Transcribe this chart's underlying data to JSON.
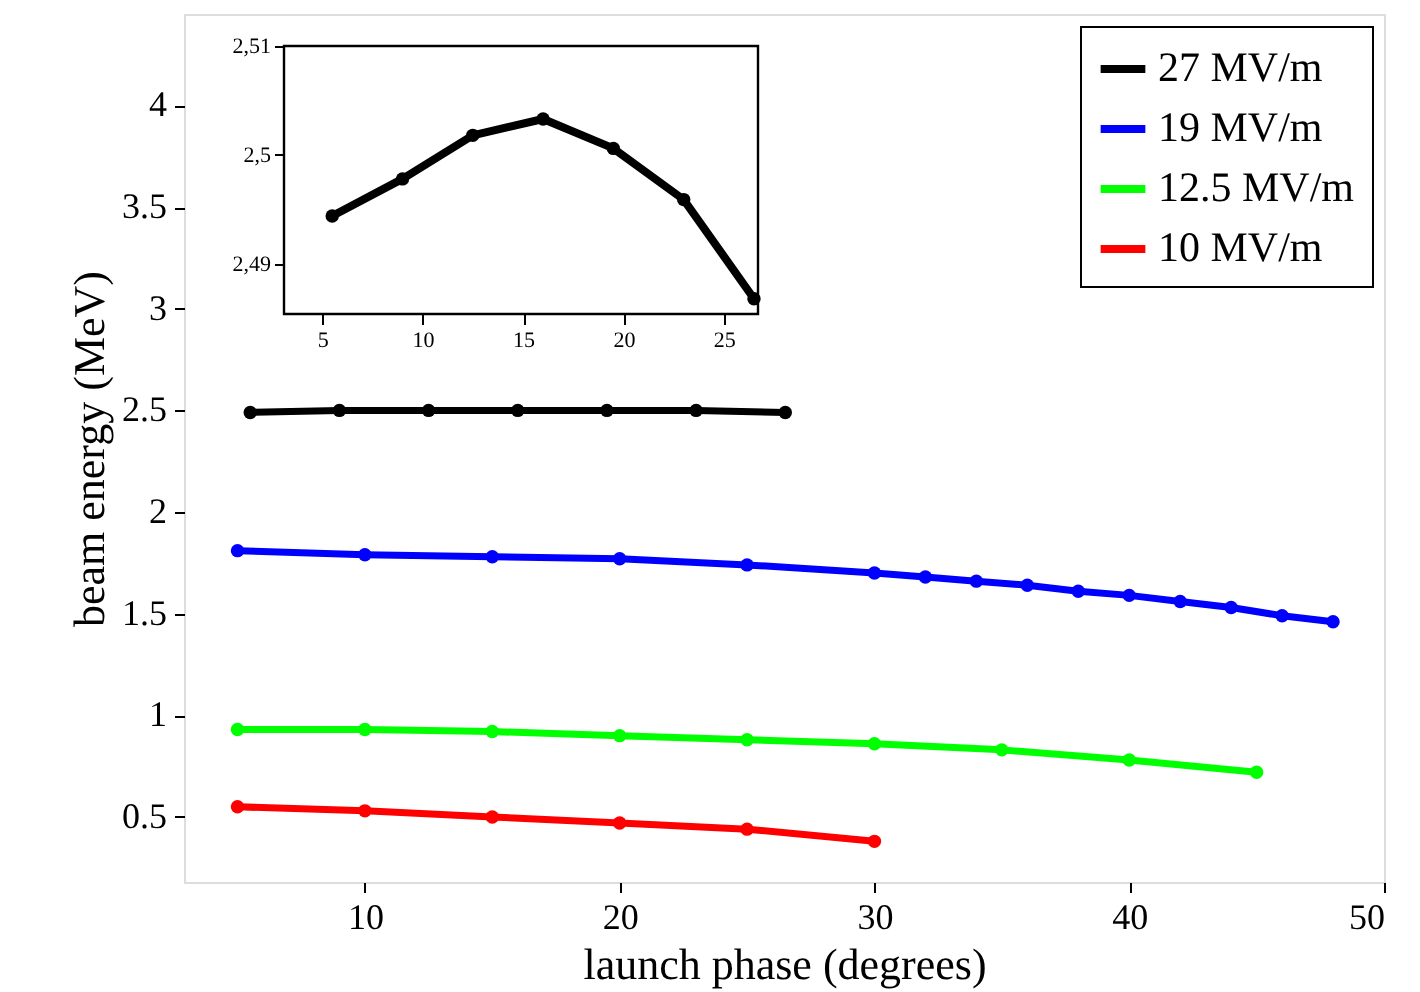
{
  "chart_data": [
    {
      "type": "line",
      "xlabel": "launch phase (degrees)",
      "ylabel": "beam energy (MeV)",
      "xlim": [
        2.9,
        50
      ],
      "ylim": [
        0.18,
        4.45
      ],
      "xticks": [
        10,
        20,
        30,
        40,
        50
      ],
      "yticks": [
        0.5,
        1,
        1.5,
        2,
        2.5,
        3,
        3.5,
        4
      ],
      "grid": false,
      "legend": "top right",
      "marker": "circle",
      "line_style": "solid",
      "series": [
        {
          "name": "27 MV/m",
          "color": "#000000",
          "x": [
            5.5,
            9,
            12.5,
            16,
            19.5,
            23,
            26.5
          ],
          "values": [
            2.49,
            2.5,
            2.5,
            2.5,
            2.5,
            2.5,
            2.49
          ]
        },
        {
          "name": "19 MV/m",
          "color": "#0000ff",
          "x": [
            5,
            10,
            15,
            20,
            25,
            30,
            32,
            34,
            36,
            38,
            40,
            42,
            44,
            46,
            48
          ],
          "values": [
            1.81,
            1.79,
            1.78,
            1.77,
            1.74,
            1.7,
            1.68,
            1.66,
            1.64,
            1.61,
            1.59,
            1.56,
            1.53,
            1.49,
            1.46
          ]
        },
        {
          "name": "12.5 MV/m",
          "color": "#00ff00",
          "x": [
            5,
            10,
            15,
            20,
            25,
            30,
            35,
            40,
            45
          ],
          "values": [
            0.93,
            0.93,
            0.92,
            0.9,
            0.88,
            0.86,
            0.83,
            0.78,
            0.72
          ]
        },
        {
          "name": "10 MV/m",
          "color": "#ff0000",
          "x": [
            5,
            10,
            15,
            20,
            25,
            30
          ],
          "values": [
            0.55,
            0.53,
            0.5,
            0.47,
            0.44,
            0.38
          ]
        }
      ]
    },
    {
      "type": "line",
      "xlim": [
        3.1,
        26.7
      ],
      "ylim": [
        2.4854,
        2.51
      ],
      "xticks": [
        5,
        10,
        15,
        20,
        25
      ],
      "yticks": [
        {
          "value": 2.49,
          "label": "2,49"
        },
        {
          "value": 2.5,
          "label": "2,5"
        },
        {
          "value": 2.51,
          "label": "2,51"
        }
      ],
      "grid": false,
      "marker": "circle",
      "line_style": "solid",
      "series": [
        {
          "color": "#000000",
          "x": [
            5.5,
            9,
            12.5,
            16,
            19.5,
            23,
            26.5
          ],
          "values": [
            2.4944,
            2.4978,
            2.5018,
            2.5033,
            2.5006,
            2.4959,
            2.4868
          ]
        }
      ]
    }
  ]
}
